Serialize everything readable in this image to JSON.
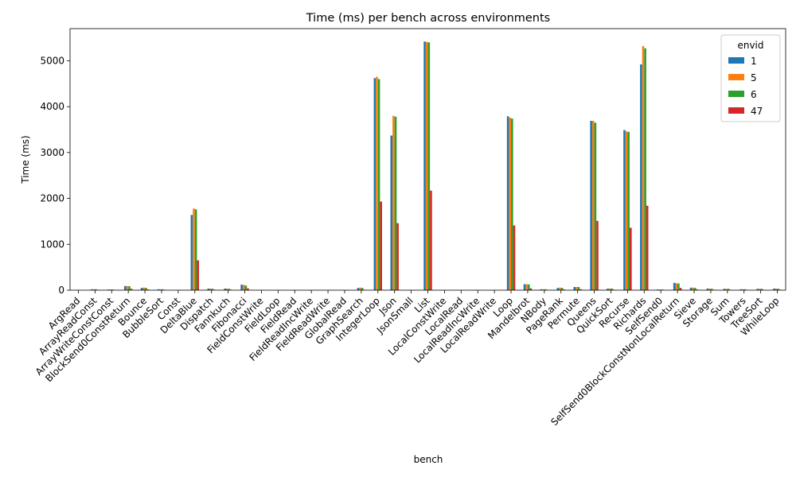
{
  "chart_data": {
    "type": "bar",
    "title": "Time (ms) per bench across environments",
    "xlabel": "bench",
    "ylabel": "Time (ms)",
    "ylim": [
      0,
      5700
    ],
    "yticks": [
      0,
      1000,
      2000,
      3000,
      4000,
      5000
    ],
    "grid": false,
    "legend": {
      "title": "envid",
      "placement": "top-right"
    },
    "categories": [
      "ArgRead",
      "ArrayReadConst",
      "ArrayWriteConstConst",
      "BlockSend0ConstReturn",
      "Bounce",
      "BubbleSort",
      "Const",
      "DeltaBlue",
      "Dispatch",
      "Fannkuch",
      "Fibonacci",
      "FieldConstWrite",
      "FieldLoop",
      "FieldRead",
      "FieldReadIncWrite",
      "FieldReadWrite",
      "GlobalRead",
      "GraphSearch",
      "IntegerLoop",
      "Json",
      "JsonSmall",
      "List",
      "LocalConstWrite",
      "LocalRead",
      "LocalReadIncWrite",
      "LocalReadWrite",
      "Loop",
      "Mandelbrot",
      "NBody",
      "PageRank",
      "Permute",
      "Queens",
      "QuickSort",
      "Recurse",
      "Richards",
      "SelfSend0",
      "SelfSend0BlockConstNonLocalReturn",
      "Sieve",
      "Storage",
      "Sum",
      "Towers",
      "TreeSort",
      "WhileLoop"
    ],
    "series": [
      {
        "name": "1",
        "color": "#1f77b4",
        "values": [
          2,
          20,
          15,
          90,
          50,
          20,
          2,
          1640,
          35,
          35,
          120,
          2,
          2,
          2,
          2,
          2,
          2,
          50,
          4620,
          3370,
          2,
          5420,
          2,
          2,
          2,
          2,
          3790,
          130,
          20,
          50,
          70,
          3690,
          35,
          3490,
          4920,
          15,
          160,
          55,
          35,
          30,
          20,
          30,
          35
        ]
      },
      {
        "name": "5",
        "color": "#ff7f0e",
        "values": [
          2,
          20,
          15,
          90,
          55,
          20,
          2,
          1780,
          35,
          35,
          115,
          2,
          2,
          2,
          2,
          2,
          2,
          55,
          4650,
          3800,
          2,
          5410,
          2,
          2,
          2,
          2,
          3760,
          130,
          20,
          55,
          70,
          3690,
          35,
          3460,
          5320,
          15,
          150,
          55,
          35,
          30,
          20,
          30,
          35
        ]
      },
      {
        "name": "6",
        "color": "#2ca02c",
        "values": [
          2,
          20,
          15,
          85,
          50,
          20,
          2,
          1760,
          30,
          30,
          100,
          2,
          2,
          2,
          2,
          2,
          2,
          50,
          4600,
          3780,
          2,
          5400,
          2,
          2,
          2,
          2,
          3740,
          125,
          20,
          50,
          70,
          3650,
          35,
          3450,
          5270,
          15,
          145,
          50,
          30,
          30,
          20,
          30,
          30
        ]
      },
      {
        "name": "47",
        "color": "#d62728",
        "values": [
          1,
          5,
          5,
          30,
          15,
          5,
          1,
          650,
          10,
          10,
          40,
          1,
          1,
          1,
          1,
          1,
          1,
          10,
          1930,
          1460,
          1,
          2170,
          1,
          1,
          1,
          1,
          1410,
          40,
          5,
          15,
          20,
          1510,
          10,
          1360,
          1840,
          5,
          50,
          15,
          10,
          10,
          5,
          5,
          10
        ]
      }
    ]
  }
}
